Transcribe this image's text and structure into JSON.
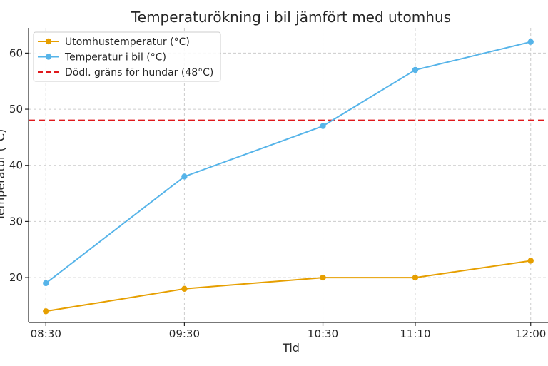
{
  "chart_data": {
    "type": "line",
    "title": "Temperaturökning i bil jämfört med utomhus",
    "xlabel": "Tid",
    "ylabel": "Temperatur (°C)",
    "categories": [
      "08:30",
      "09:30",
      "10:30",
      "11:10",
      "12:00"
    ],
    "x_minutes": [
      510,
      570,
      630,
      670,
      720
    ],
    "ylim": [
      12,
      64.5
    ],
    "yticks": [
      20,
      30,
      40,
      50,
      60
    ],
    "grid": true,
    "legend_position": "top-left",
    "series": [
      {
        "name": "Utomhustemperatur (°C)",
        "values": [
          14,
          18,
          20,
          20,
          23
        ],
        "color": "#E69F00"
      },
      {
        "name": "Temperatur i bil (°C)",
        "values": [
          19,
          38,
          47,
          57,
          62
        ],
        "color": "#56B4E9"
      }
    ],
    "reference_line": {
      "name": "Dödl. gräns för hundar (48°C)",
      "value": 48,
      "color": "#E0191C"
    }
  }
}
